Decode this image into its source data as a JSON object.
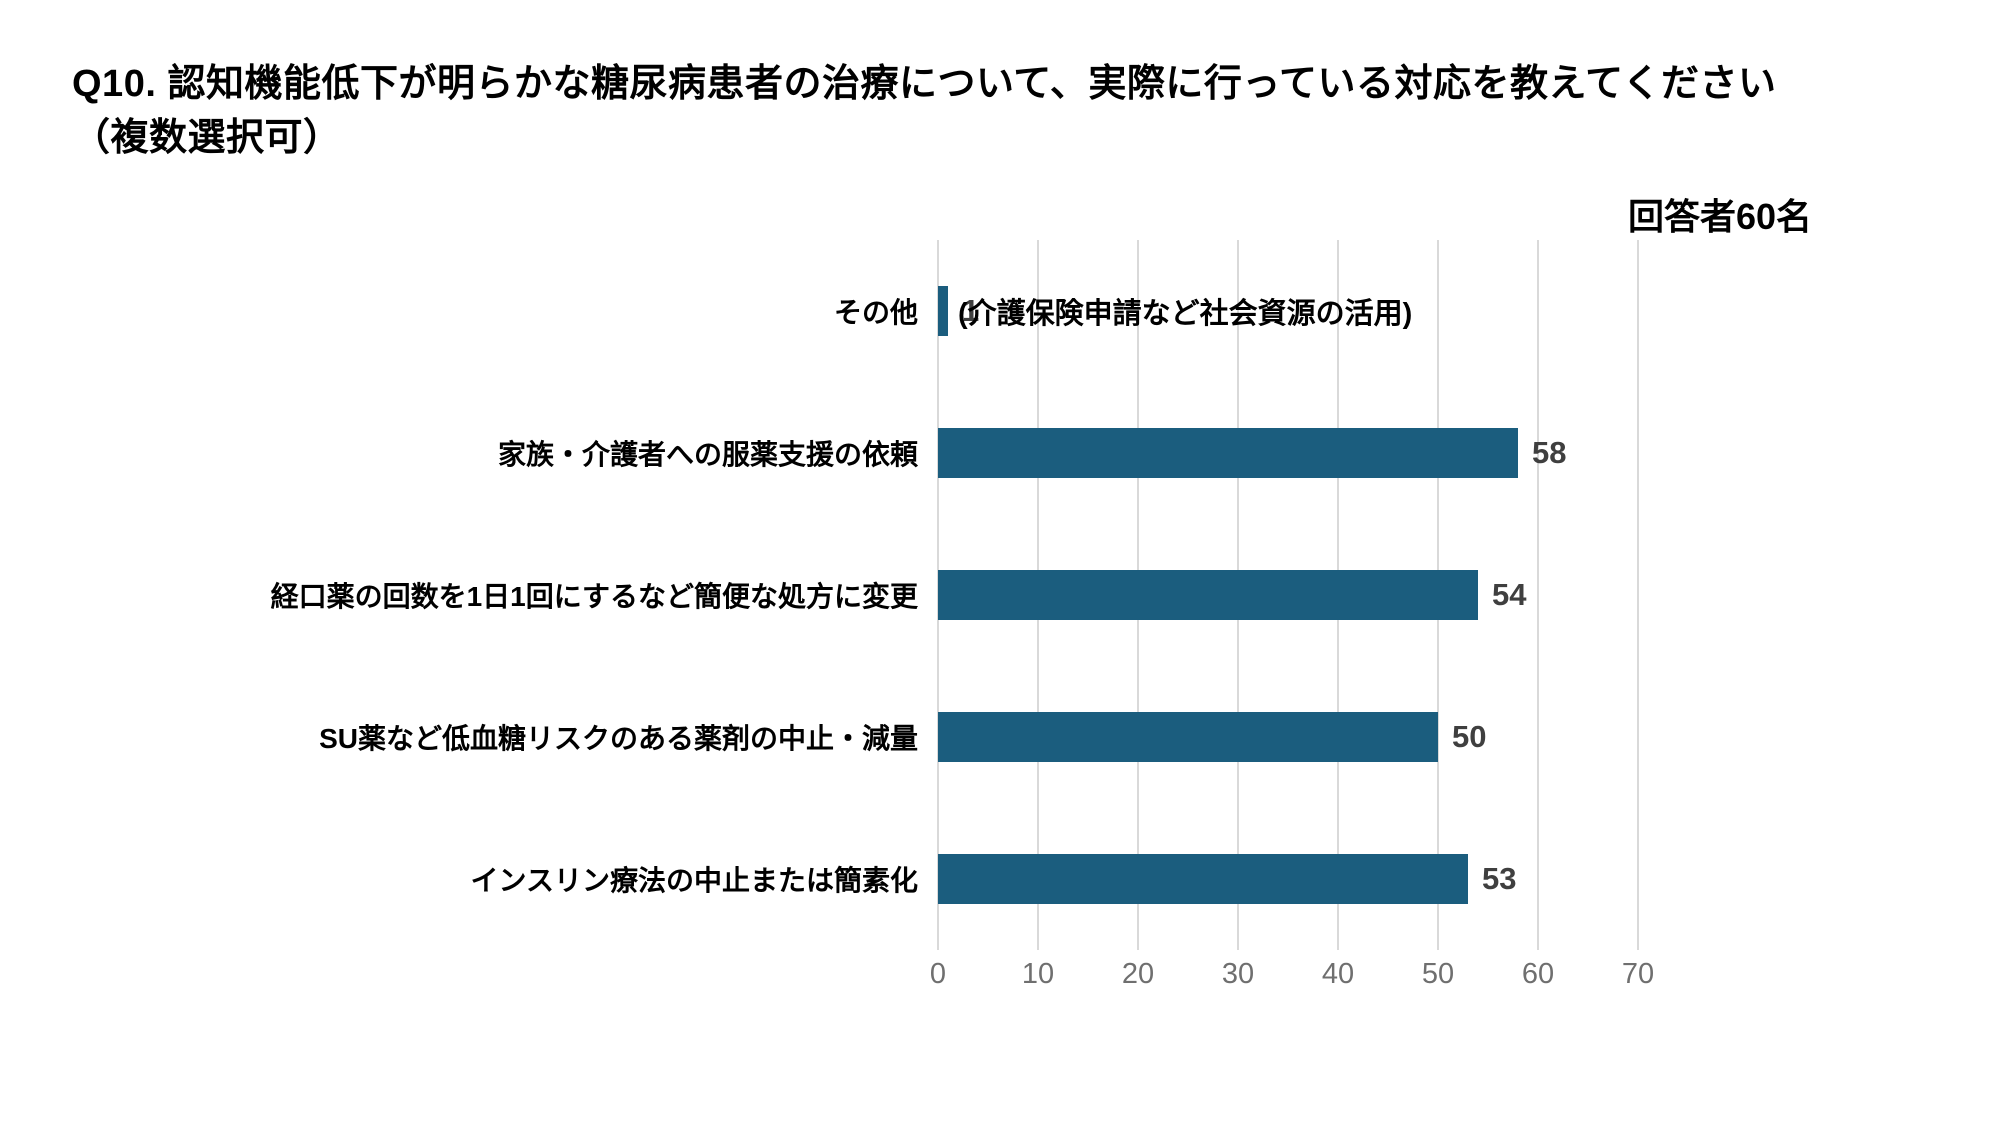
{
  "chart_data": {
    "type": "bar",
    "orientation": "horizontal",
    "title": "Q10. 認知機能低下が明らかな糖尿病患者の治療について、実際に行っている対応を教えてください\n（複数選択可）",
    "respondents_note": "回答者60名",
    "categories": [
      "その他",
      "家族・介護者への服薬支援の依頼",
      "経口薬の回数を1日1回にするなど簡便な処方に変更",
      "SU薬など低血糖リスクのある薬剤の中止・減量",
      "インスリン療法の中止または簡素化"
    ],
    "values": [
      1,
      58,
      54,
      50,
      53
    ],
    "annotations": [
      {
        "category_index": 0,
        "text": "(介護保険申請など社会資源の活用)"
      }
    ],
    "x_ticks": [
      0,
      10,
      20,
      30,
      40,
      50,
      60,
      70
    ],
    "xlim": [
      0,
      70
    ],
    "grid": "vertical",
    "legend": "none",
    "colors": {
      "bar": "#1B5D7E",
      "gridline": "#D9D9D9",
      "value_label": "#3F3F3F",
      "tick_label": "#6F6F6F",
      "text": "#000000",
      "background": "#FFFFFF"
    }
  }
}
